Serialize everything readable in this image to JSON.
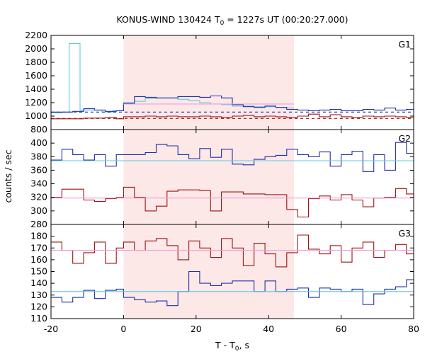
{
  "chart_data": {
    "type": "line",
    "title": "KONUS-WIND 130424 T",
    "title_sub": "0",
    "title_rest": " = 1227s UT (00:20:27.000)",
    "xlabel": "T - T",
    "xlabel_sub": "0",
    "xlabel_rest": ", s",
    "ylabel": "counts / sec",
    "xlim": [
      -20,
      80
    ],
    "x_ticks": [
      -20,
      0,
      20,
      40,
      60,
      80
    ],
    "shaded_interval": [
      0,
      47
    ],
    "colors": {
      "shade": "#fde8e8",
      "blue": "#1f2fa8",
      "red": "#a01010",
      "cyan": "#5fc8e0",
      "pink": "#f0a0d8"
    },
    "panels": [
      {
        "name": "G1",
        "ylim": [
          800,
          2200
        ],
        "y_ticks": [
          800,
          1000,
          1200,
          1400,
          1600,
          1800,
          2000,
          2200
        ],
        "series": [
          {
            "color": "#5fc8e0",
            "style": "step",
            "x": [
              -20,
              -17,
              -15,
              -12,
              -9,
              -6,
              -3,
              0,
              3,
              6,
              9,
              12,
              15,
              18,
              21,
              24,
              27,
              30,
              33,
              36,
              39,
              42,
              45,
              47
            ],
            "y": [
              1050,
              1060,
              2080,
              1090,
              1090,
              1060,
              1080,
              1200,
              1220,
              1260,
              1270,
              1270,
              1250,
              1230,
              1200,
              1180,
              1170,
              1150,
              1150,
              1140,
              1140,
              1130,
              1120,
              1120
            ]
          },
          {
            "color": "#1f2fa8",
            "style": "step",
            "x": [
              -20,
              -17,
              -14,
              -11,
              -8,
              -5,
              -2,
              0,
              3,
              6,
              9,
              12,
              15,
              18,
              21,
              24,
              27,
              30,
              33,
              36,
              39,
              42,
              45,
              48,
              51,
              54,
              57,
              60,
              63,
              66,
              69,
              72,
              75,
              78,
              80
            ],
            "y": [
              1060,
              1060,
              1070,
              1110,
              1090,
              1070,
              1080,
              1190,
              1290,
              1280,
              1270,
              1270,
              1290,
              1290,
              1280,
              1300,
              1270,
              1170,
              1140,
              1130,
              1150,
              1130,
              1100,
              1090,
              1080,
              1090,
              1100,
              1080,
              1080,
              1100,
              1090,
              1120,
              1090,
              1100,
              1110
            ]
          },
          {
            "color": "#a01010",
            "style": "step",
            "x": [
              -20,
              -17,
              -14,
              -11,
              -8,
              -5,
              -2,
              0,
              3,
              6,
              9,
              12,
              15,
              18,
              21,
              24,
              27,
              30,
              33,
              36,
              39,
              42,
              45,
              48,
              51,
              54,
              57,
              60,
              63,
              66,
              69,
              72,
              75,
              78,
              80
            ],
            "y": [
              960,
              960,
              960,
              970,
              970,
              980,
              960,
              990,
              990,
              1000,
              990,
              1000,
              990,
              990,
              1000,
              990,
              980,
              1000,
              1010,
              990,
              1000,
              990,
              980,
              1000,
              1030,
              990,
              1020,
              990,
              980,
              1000,
              990,
              1000,
              990,
              980,
              1000
            ]
          },
          {
            "color": "#1f2fa8",
            "style": "dashed",
            "x": [
              -20,
              80
            ],
            "y": [
              1060,
              1060
            ]
          },
          {
            "color": "#a01010",
            "style": "dashed",
            "x": [
              -20,
              80
            ],
            "y": [
              965,
              965
            ]
          },
          {
            "color": "#f0a0d8",
            "style": "line",
            "x": [
              0,
              47
            ],
            "y": [
              1180,
              1180
            ]
          }
        ]
      },
      {
        "name": "G2",
        "ylim": [
          280,
          420
        ],
        "y_ticks": [
          280,
          300,
          320,
          340,
          360,
          380,
          400
        ],
        "series": [
          {
            "color": "#1f2fa8",
            "style": "step",
            "x": [
              -20,
              -17,
              -14,
              -11,
              -8,
              -5,
              -2,
              0,
              3,
              6,
              9,
              12,
              15,
              18,
              21,
              24,
              27,
              30,
              33,
              36,
              39,
              42,
              45,
              48,
              51,
              54,
              57,
              60,
              63,
              66,
              69,
              72,
              75,
              78,
              80
            ],
            "y": [
              375,
              391,
              383,
              375,
              383,
              366,
              383,
              383,
              383,
              386,
              398,
              396,
              383,
              377,
              392,
              379,
              391,
              369,
              368,
              376,
              380,
              382,
              391,
              383,
              380,
              387,
              366,
              383,
              388,
              358,
              383,
              360,
              401,
              385,
              363
            ]
          },
          {
            "color": "#a01010",
            "style": "step",
            "x": [
              -20,
              -17,
              -14,
              -11,
              -8,
              -5,
              -2,
              0,
              3,
              6,
              9,
              12,
              15,
              18,
              21,
              24,
              27,
              30,
              33,
              36,
              39,
              42,
              45,
              48,
              51,
              54,
              57,
              60,
              63,
              66,
              69,
              72,
              75,
              78,
              80
            ],
            "y": [
              320,
              332,
              332,
              316,
              314,
              318,
              320,
              335,
              320,
              300,
              307,
              329,
              331,
              331,
              330,
              300,
              328,
              328,
              325,
              325,
              324,
              324,
              302,
              291,
              318,
              322,
              316,
              324,
              316,
              306,
              319,
              320,
              333,
              325,
              338
            ]
          },
          {
            "color": "#5fc8e0",
            "style": "line",
            "x": [
              -20,
              80
            ],
            "y": [
              374,
              374
            ]
          },
          {
            "color": "#f0a0d8",
            "style": "line",
            "x": [
              -20,
              80
            ],
            "y": [
              319,
              319
            ]
          }
        ]
      },
      {
        "name": "G3",
        "ylim": [
          110,
          190
        ],
        "y_ticks": [
          110,
          120,
          130,
          140,
          150,
          160,
          170,
          180
        ],
        "series": [
          {
            "color": "#a01010",
            "style": "step",
            "x": [
              -20,
              -17,
              -14,
              -11,
              -8,
              -5,
              -2,
              0,
              3,
              6,
              9,
              12,
              15,
              18,
              21,
              24,
              27,
              30,
              33,
              36,
              39,
              42,
              45,
              48,
              51,
              54,
              57,
              60,
              63,
              66,
              69,
              72,
              75,
              78,
              80
            ],
            "y": [
              175,
              168,
              157,
              166,
              175,
              157,
              170,
              175,
              168,
              176,
              178,
              172,
              160,
              176,
              170,
              162,
              178,
              170,
              155,
              174,
              165,
              154,
              166,
              181,
              169,
              165,
              172,
              158,
              170,
              175,
              162,
              168,
              173,
              165,
              172
            ]
          },
          {
            "color": "#1f2fa8",
            "style": "step",
            "x": [
              -20,
              -17,
              -14,
              -11,
              -8,
              -5,
              -2,
              0,
              3,
              6,
              9,
              12,
              15,
              18,
              21,
              24,
              27,
              30,
              33,
              36,
              39,
              42,
              45,
              48,
              51,
              54,
              57,
              60,
              63,
              66,
              69,
              72,
              75,
              78,
              80
            ],
            "y": [
              128,
              124,
              128,
              134,
              127,
              134,
              135,
              128,
              126,
              124,
              125,
              121,
              133,
              150,
              140,
              138,
              140,
              142,
              142,
              133,
              142,
              133,
              135,
              136,
              128,
              136,
              135,
              133,
              135,
              122,
              131,
              135,
              137,
              143,
              139
            ]
          },
          {
            "color": "#5fc8e0",
            "style": "line",
            "x": [
              -20,
              80
            ],
            "y": [
              133,
              133
            ]
          },
          {
            "color": "#f0a0d8",
            "style": "line",
            "x": [
              -20,
              80
            ],
            "y": [
              168,
              168
            ]
          }
        ]
      }
    ]
  }
}
